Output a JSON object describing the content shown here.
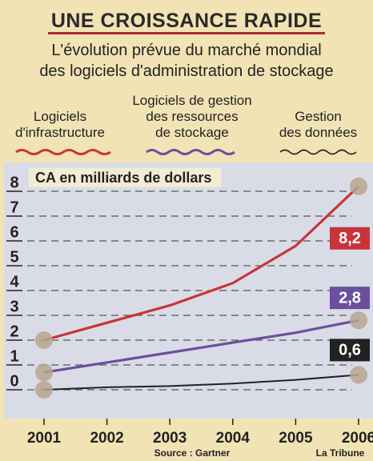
{
  "chart_data": {
    "type": "line",
    "title": "UNE CROISSANCE RAPIDE",
    "subtitle": [
      "L'évolution prévue du marché mondial",
      "des logiciels d'administration de stockage"
    ],
    "y_label": "CA en milliards de dollars",
    "source": "Source : Gartner",
    "credit": "La Tribune",
    "x": [
      2001,
      2002,
      2003,
      2004,
      2005,
      2006
    ],
    "xlim": [
      2001,
      2006
    ],
    "xticks": [
      2001,
      2002,
      2003,
      2004,
      2005,
      2006
    ],
    "ylim": [
      0,
      8
    ],
    "yticks": [
      0,
      1,
      2,
      3,
      4,
      5,
      6,
      7,
      8
    ],
    "grid": true,
    "series": [
      {
        "name": "Logiciels\nd'infrastructure",
        "color": "#c8343a",
        "values": [
          2.0,
          2.7,
          3.4,
          4.3,
          5.8,
          8.2
        ],
        "value_labels": [
          null,
          null,
          null,
          null,
          null,
          "8,2"
        ]
      },
      {
        "name": "Logiciels de gestion\ndes ressources\nde stockage",
        "color": "#6b4f9e",
        "values": [
          0.7,
          1.1,
          1.5,
          1.9,
          2.3,
          2.8
        ],
        "value_labels": [
          null,
          null,
          null,
          null,
          null,
          "2,8"
        ]
      },
      {
        "name": "Gestion\ndes données",
        "color": "#222222",
        "values": [
          0.0,
          0.1,
          0.15,
          0.25,
          0.4,
          0.6
        ],
        "value_labels": [
          null,
          null,
          null,
          null,
          null,
          "0,6"
        ]
      }
    ]
  }
}
